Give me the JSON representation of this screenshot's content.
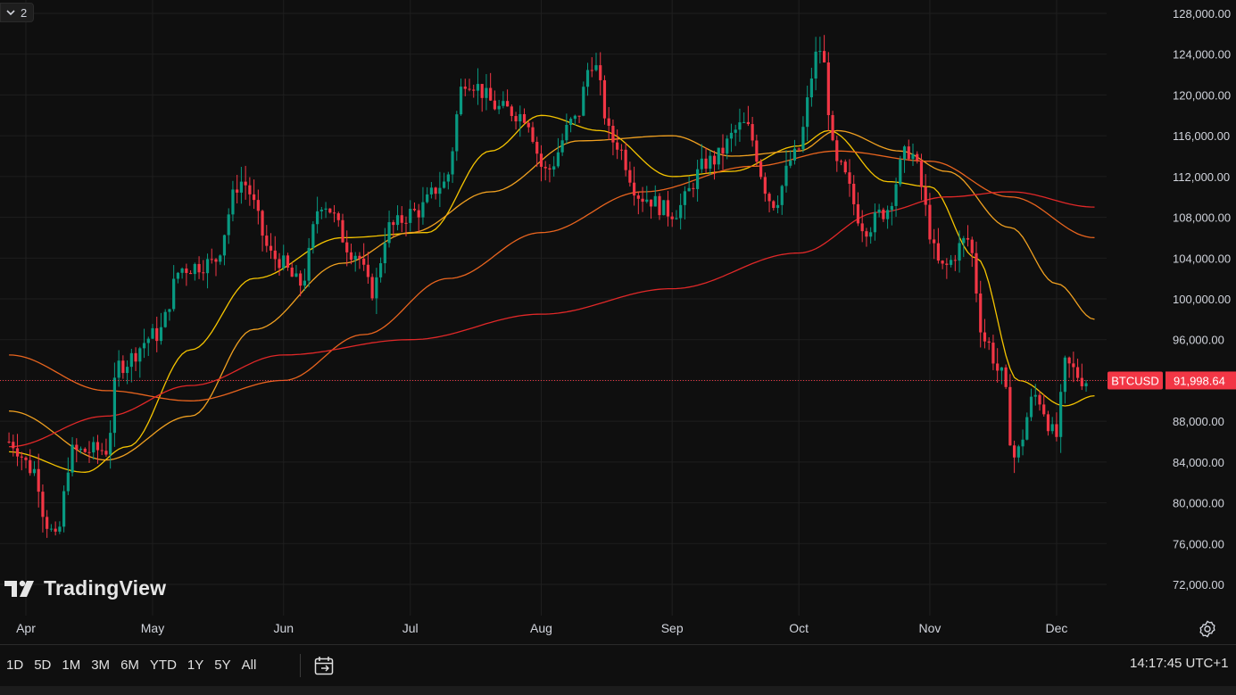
{
  "toolbar": {
    "collapse_count": "2"
  },
  "logo": {
    "text": "TradingView"
  },
  "ranges": [
    "1D",
    "5D",
    "1M",
    "3M",
    "6M",
    "YTD",
    "1Y",
    "5Y",
    "All"
  ],
  "clock": "14:17:45 UTC+1",
  "colors": {
    "background": "#0f0f0f",
    "up": "#089981",
    "down": "#f23645",
    "ma20": "#f5c400",
    "ma50": "#f0a020",
    "ma100": "#e8641e",
    "ma200": "#e02828"
  },
  "chart_data": {
    "type": "candlestick",
    "symbol": "BTCUSD",
    "last_price": 91998.64,
    "last_price_label": "91,998.64",
    "ylim": [
      70000,
      129000
    ],
    "y_ticks": [
      "128,000.00",
      "124,000.00",
      "120,000.00",
      "116,000.00",
      "112,000.00",
      "108,000.00",
      "104,000.00",
      "100,000.00",
      "96,000.00",
      "92,000.00",
      "88,000.00",
      "84,000.00",
      "80,000.00",
      "76,000.00",
      "72,000.00"
    ],
    "y_tick_values": [
      128000,
      124000,
      120000,
      116000,
      112000,
      108000,
      104000,
      100000,
      96000,
      92000,
      88000,
      84000,
      80000,
      76000,
      72000
    ],
    "x_ticks": [
      "Apr",
      "May",
      "Jun",
      "Jul",
      "Aug",
      "Sep",
      "Oct",
      "Nov",
      "Dec"
    ],
    "x_tick_dates": [
      "2025-04-01",
      "2025-05-01",
      "2025-06-01",
      "2025-07-01",
      "2025-08-01",
      "2025-09-01",
      "2025-10-01",
      "2025-11-01",
      "2025-12-01"
    ],
    "grid": true,
    "close_anchors": [
      {
        "date": "2025-03-28",
        "close": 86000
      },
      {
        "date": "2025-04-03",
        "close": 83200
      },
      {
        "date": "2025-04-06",
        "close": 78000
      },
      {
        "date": "2025-04-08",
        "close": 76300
      },
      {
        "date": "2025-04-12",
        "close": 85000
      },
      {
        "date": "2025-04-20",
        "close": 85200
      },
      {
        "date": "2025-04-23",
        "close": 93500
      },
      {
        "date": "2025-05-02",
        "close": 96500
      },
      {
        "date": "2025-05-08",
        "close": 103000
      },
      {
        "date": "2025-05-15",
        "close": 103500
      },
      {
        "date": "2025-05-22",
        "close": 111500
      },
      {
        "date": "2025-05-30",
        "close": 104000
      },
      {
        "date": "2025-06-05",
        "close": 101500
      },
      {
        "date": "2025-06-10",
        "close": 109500
      },
      {
        "date": "2025-06-18",
        "close": 104500
      },
      {
        "date": "2025-06-22",
        "close": 100800
      },
      {
        "date": "2025-06-26",
        "close": 107000
      },
      {
        "date": "2025-07-02",
        "close": 108500
      },
      {
        "date": "2025-07-09",
        "close": 111300
      },
      {
        "date": "2025-07-14",
        "close": 121500
      },
      {
        "date": "2025-07-23",
        "close": 118600
      },
      {
        "date": "2025-07-28",
        "close": 118000
      },
      {
        "date": "2025-08-02",
        "close": 112500
      },
      {
        "date": "2025-08-09",
        "close": 117500
      },
      {
        "date": "2025-08-13",
        "close": 123300
      },
      {
        "date": "2025-08-18",
        "close": 115500
      },
      {
        "date": "2025-08-25",
        "close": 110000
      },
      {
        "date": "2025-09-01",
        "close": 108500
      },
      {
        "date": "2025-09-10",
        "close": 113500
      },
      {
        "date": "2025-09-18",
        "close": 117000
      },
      {
        "date": "2025-09-25",
        "close": 109500
      },
      {
        "date": "2025-09-30",
        "close": 114000
      },
      {
        "date": "2025-10-06",
        "close": 124500
      },
      {
        "date": "2025-10-10",
        "close": 113000
      },
      {
        "date": "2025-10-17",
        "close": 107000
      },
      {
        "date": "2025-10-21",
        "close": 108500
      },
      {
        "date": "2025-10-27",
        "close": 114500
      },
      {
        "date": "2025-11-04",
        "close": 103000
      },
      {
        "date": "2025-11-10",
        "close": 105800
      },
      {
        "date": "2025-11-14",
        "close": 96000
      },
      {
        "date": "2025-11-18",
        "close": 92500
      },
      {
        "date": "2025-11-21",
        "close": 84500
      },
      {
        "date": "2025-11-26",
        "close": 90500
      },
      {
        "date": "2025-12-01",
        "close": 86500
      },
      {
        "date": "2025-12-03",
        "close": 93500
      },
      {
        "date": "2025-12-08",
        "close": 92000
      }
    ],
    "moving_averages": [
      {
        "color": "#f5c400",
        "points": [
          {
            "date": "2025-03-28",
            "value": 85000
          },
          {
            "date": "2025-04-15",
            "value": 83000
          },
          {
            "date": "2025-04-25",
            "value": 85500
          },
          {
            "date": "2025-05-10",
            "value": 95000
          },
          {
            "date": "2025-05-25",
            "value": 102000
          },
          {
            "date": "2025-06-15",
            "value": 106000
          },
          {
            "date": "2025-07-05",
            "value": 106500
          },
          {
            "date": "2025-07-20",
            "value": 114500
          },
          {
            "date": "2025-08-01",
            "value": 118000
          },
          {
            "date": "2025-08-15",
            "value": 116500
          },
          {
            "date": "2025-09-01",
            "value": 112000
          },
          {
            "date": "2025-09-15",
            "value": 112500
          },
          {
            "date": "2025-10-01",
            "value": 115000
          },
          {
            "date": "2025-10-08",
            "value": 116500
          },
          {
            "date": "2025-10-22",
            "value": 111500
          },
          {
            "date": "2025-11-01",
            "value": 111000
          },
          {
            "date": "2025-11-12",
            "value": 104000
          },
          {
            "date": "2025-11-22",
            "value": 92000
          },
          {
            "date": "2025-12-03",
            "value": 89500
          },
          {
            "date": "2025-12-10",
            "value": 90500
          }
        ]
      },
      {
        "color": "#f0a020",
        "points": [
          {
            "date": "2025-03-28",
            "value": 89000
          },
          {
            "date": "2025-04-20",
            "value": 84200
          },
          {
            "date": "2025-05-10",
            "value": 88500
          },
          {
            "date": "2025-05-25",
            "value": 97000
          },
          {
            "date": "2025-06-15",
            "value": 103500
          },
          {
            "date": "2025-07-01",
            "value": 106500
          },
          {
            "date": "2025-07-20",
            "value": 110500
          },
          {
            "date": "2025-08-10",
            "value": 115500
          },
          {
            "date": "2025-09-01",
            "value": 116000
          },
          {
            "date": "2025-09-15",
            "value": 114000
          },
          {
            "date": "2025-10-01",
            "value": 114500
          },
          {
            "date": "2025-10-10",
            "value": 116500
          },
          {
            "date": "2025-10-25",
            "value": 114500
          },
          {
            "date": "2025-11-05",
            "value": 112500
          },
          {
            "date": "2025-11-20",
            "value": 107000
          },
          {
            "date": "2025-12-01",
            "value": 101500
          },
          {
            "date": "2025-12-10",
            "value": 98000
          }
        ]
      },
      {
        "color": "#e8641e",
        "points": [
          {
            "date": "2025-03-28",
            "value": 94500
          },
          {
            "date": "2025-04-20",
            "value": 91000
          },
          {
            "date": "2025-05-10",
            "value": 90000
          },
          {
            "date": "2025-06-01",
            "value": 92000
          },
          {
            "date": "2025-06-20",
            "value": 96500
          },
          {
            "date": "2025-07-10",
            "value": 102000
          },
          {
            "date": "2025-08-01",
            "value": 106500
          },
          {
            "date": "2025-08-25",
            "value": 110500
          },
          {
            "date": "2025-09-20",
            "value": 113000
          },
          {
            "date": "2025-10-10",
            "value": 114500
          },
          {
            "date": "2025-11-01",
            "value": 113500
          },
          {
            "date": "2025-11-20",
            "value": 110000
          },
          {
            "date": "2025-12-10",
            "value": 106000
          }
        ]
      },
      {
        "color": "#e02828",
        "points": [
          {
            "date": "2025-03-28",
            "value": 85500
          },
          {
            "date": "2025-04-20",
            "value": 88500
          },
          {
            "date": "2025-05-10",
            "value": 91500
          },
          {
            "date": "2025-06-01",
            "value": 94500
          },
          {
            "date": "2025-07-01",
            "value": 96000
          },
          {
            "date": "2025-08-01",
            "value": 98500
          },
          {
            "date": "2025-09-01",
            "value": 101000
          },
          {
            "date": "2025-10-01",
            "value": 104500
          },
          {
            "date": "2025-10-20",
            "value": 108500
          },
          {
            "date": "2025-11-05",
            "value": 110000
          },
          {
            "date": "2025-11-20",
            "value": 110500
          },
          {
            "date": "2025-12-10",
            "value": 109000
          }
        ]
      }
    ]
  }
}
